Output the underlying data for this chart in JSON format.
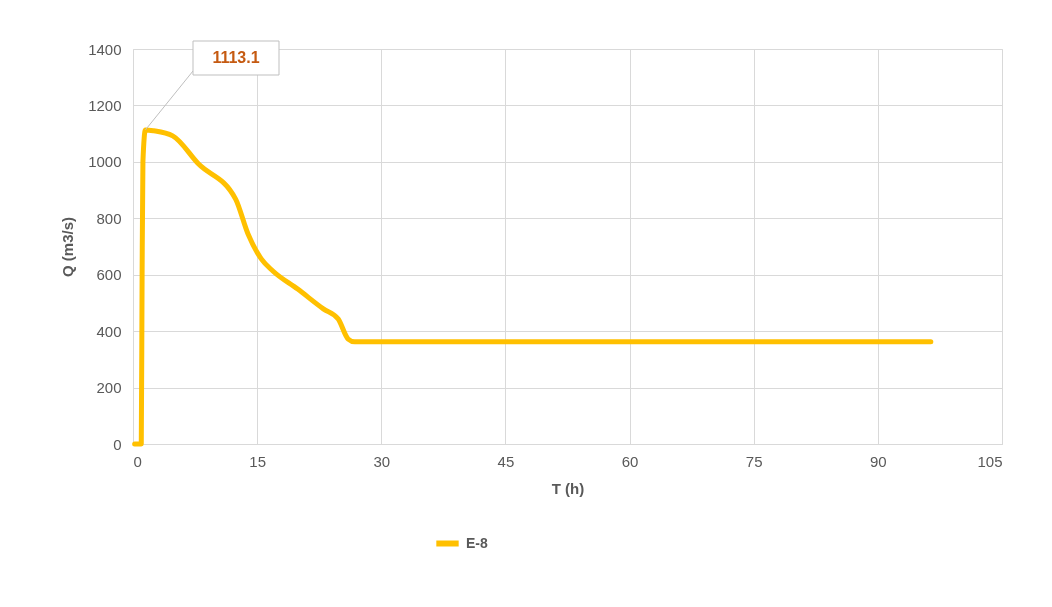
{
  "chart_data": {
    "type": "line",
    "xlabel": "T (h)",
    "ylabel": "Q (m3/s)",
    "xlim": [
      0,
      105
    ],
    "xticks": [
      0,
      15,
      30,
      45,
      60,
      75,
      90,
      105
    ],
    "ylim": [
      0,
      1400
    ],
    "yticks": [
      0,
      200,
      400,
      600,
      800,
      1000,
      1200,
      1400
    ],
    "grid": true,
    "legend": "bottom",
    "line_style": "solid",
    "series": [
      {
        "name": "E-8",
        "color": "#ffc000",
        "x": [
          0.2,
          1.0,
          1.1,
          1.2,
          1.5,
          2.5,
          4.8,
          7.9,
          12.4,
          13.9,
          15.5,
          16.9,
          19.9,
          23.0,
          24.8,
          26.0,
          26.8,
          96.4
        ],
        "values": [
          0,
          0,
          600,
          1000,
          1113.1,
          1110,
          1092,
          993,
          868,
          744,
          656,
          613,
          549,
          479,
          443,
          372,
          362,
          362
        ]
      }
    ],
    "annotations": [
      {
        "text": "1113.1",
        "x": 1.5,
        "y": 1113.1
      }
    ]
  }
}
